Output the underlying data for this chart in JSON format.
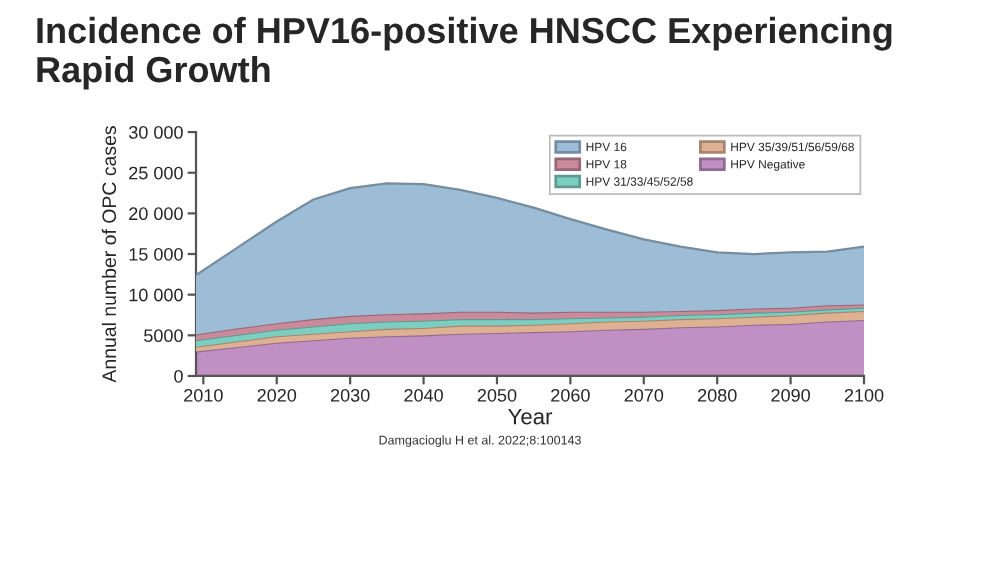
{
  "chart_data": {
    "type": "area",
    "stacked": true,
    "title": "Incidence of HPV16-positive HNSCC Experiencing Rapid Growth",
    "xlabel": "Year",
    "ylabel": "Annual number of OPC cases",
    "x": [
      2009,
      2015,
      2020,
      2025,
      2030,
      2035,
      2040,
      2045,
      2050,
      2055,
      2060,
      2065,
      2070,
      2075,
      2080,
      2085,
      2090,
      2095,
      2100
    ],
    "series": [
      {
        "name": "HPV Negative",
        "color": "#c08fc3",
        "values": [
          3000,
          3600,
          4100,
          4400,
          4700,
          4900,
          5000,
          5200,
          5300,
          5400,
          5500,
          5700,
          5800,
          6000,
          6100,
          6300,
          6400,
          6700,
          6900
        ]
      },
      {
        "name": "HPV 35/39/51/56/59/68",
        "color": "#deb192",
        "values": [
          600,
          700,
          800,
          800,
          800,
          900,
          900,
          1000,
          900,
          900,
          1000,
          1000,
          1000,
          1000,
          1000,
          1000,
          1100,
          1100,
          1100
        ]
      },
      {
        "name": "HPV 31/33/45/52/58",
        "color": "#7ccfc0",
        "values": [
          800,
          800,
          800,
          900,
          1000,
          900,
          900,
          800,
          800,
          700,
          600,
          500,
          500,
          500,
          500,
          500,
          400,
          400,
          400
        ]
      },
      {
        "name": "HPV 18",
        "color": "#c98a9b",
        "values": [
          700,
          800,
          800,
          900,
          900,
          900,
          900,
          900,
          900,
          800,
          800,
          700,
          600,
          500,
          500,
          500,
          500,
          500,
          400
        ]
      },
      {
        "name": "HPV 16",
        "color": "#9dbcd6",
        "values": [
          7300,
          10100,
          12500,
          14700,
          15700,
          16100,
          15900,
          15000,
          14000,
          12900,
          11400,
          10100,
          8900,
          7900,
          7100,
          6700,
          6800,
          6600,
          7100
        ]
      }
    ],
    "xlim": [
      2009,
      2100
    ],
    "xticks": [
      2010,
      2020,
      2030,
      2040,
      2050,
      2060,
      2070,
      2080,
      2090,
      2100
    ],
    "ylim": [
      0,
      30000
    ],
    "yticks": [
      0,
      {
        "value": 5000,
        "label": "5000"
      },
      {
        "value": 10000,
        "label": "10 000"
      },
      {
        "value": 15000,
        "label": "15 000"
      },
      {
        "value": 20000,
        "label": "20 000"
      },
      {
        "value": 25000,
        "label": "25 000"
      },
      {
        "value": 30000,
        "label": "30 000"
      }
    ],
    "grid": false,
    "legend": "top right",
    "annotations": [
      "Damgacioglu H et al. 2022;8:100143"
    ]
  }
}
